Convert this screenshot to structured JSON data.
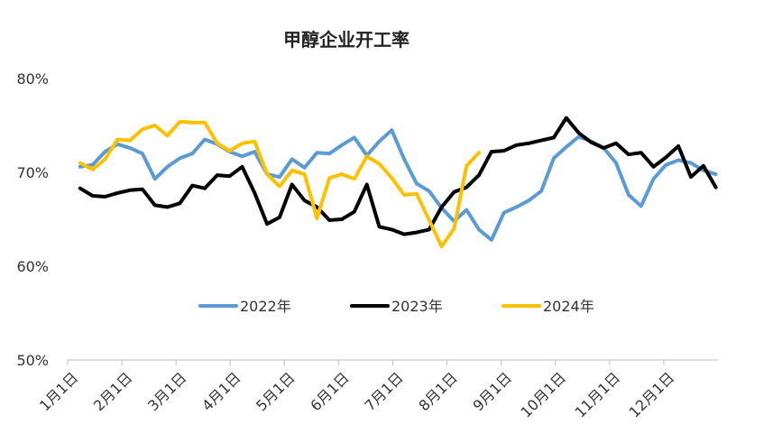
{
  "chart_data": {
    "type": "line",
    "title": "甲醇企业开工率",
    "xlabel": "",
    "ylabel": "",
    "ylim": [
      50,
      80
    ],
    "yticks": [
      "50%",
      "60%",
      "70%",
      "80%"
    ],
    "yticks_values": [
      50,
      60,
      70,
      80
    ],
    "xlim": [
      0,
      12
    ],
    "xticks": [
      "1月1日",
      "2月1日",
      "3月1日",
      "4月1日",
      "5月1日",
      "6月1日",
      "7月1日",
      "8月1日",
      "9月1日",
      "10月1日",
      "11月1日",
      "12月1日"
    ],
    "xticks_values": [
      0,
      1,
      2,
      3,
      4,
      5,
      6,
      7,
      8,
      9,
      10,
      11
    ],
    "x_units": "month index from 1月1日",
    "grid": false,
    "legend_position": "bottom-center",
    "series": [
      {
        "name": "2022年",
        "color": "#5B9BD5",
        "x": [
          0.23,
          0.46,
          0.69,
          0.92,
          1.15,
          1.38,
          1.61,
          1.84,
          2.07,
          2.3,
          2.53,
          2.76,
          2.99,
          3.22,
          3.45,
          3.68,
          3.91,
          4.14,
          4.37,
          4.6,
          4.83,
          5.06,
          5.29,
          5.52,
          5.75,
          5.98,
          6.21,
          6.44,
          6.67,
          6.9,
          7.13,
          7.36,
          7.59,
          7.82,
          8.05,
          8.28,
          8.51,
          8.74,
          8.97,
          9.2,
          9.43,
          9.66,
          9.89,
          10.12,
          10.35,
          10.58,
          10.81,
          11.04,
          11.27,
          11.5,
          11.73,
          11.96
        ],
        "values": [
          70.6,
          70.8,
          72.2,
          73.0,
          72.6,
          72.0,
          69.3,
          70.6,
          71.5,
          72.0,
          73.5,
          73.0,
          72.2,
          71.7,
          72.2,
          69.8,
          69.5,
          71.4,
          70.5,
          72.1,
          72.0,
          72.9,
          73.7,
          71.8,
          73.3,
          74.5,
          71.4,
          68.8,
          68.0,
          66.2,
          64.8,
          66.0,
          63.9,
          62.8,
          65.7,
          66.3,
          67.0,
          68.0,
          71.5,
          72.7,
          73.8,
          73.3,
          72.6,
          71.0,
          67.6,
          66.4,
          69.3,
          70.8,
          71.3,
          71.0,
          70.2,
          69.8
        ]
      },
      {
        "name": "2023年",
        "color": "#000000",
        "x": [
          0.23,
          0.46,
          0.69,
          0.92,
          1.15,
          1.38,
          1.61,
          1.84,
          2.07,
          2.3,
          2.53,
          2.76,
          2.99,
          3.22,
          3.45,
          3.68,
          3.91,
          4.14,
          4.37,
          4.6,
          4.83,
          5.06,
          5.29,
          5.52,
          5.75,
          5.98,
          6.21,
          6.44,
          6.67,
          6.9,
          7.13,
          7.36,
          7.59,
          7.82,
          8.05,
          8.28,
          8.51,
          8.74,
          8.97,
          9.2,
          9.43,
          9.66,
          9.89,
          10.12,
          10.35,
          10.58,
          10.81,
          11.04,
          11.27,
          11.5,
          11.73,
          11.96
        ],
        "values": [
          68.3,
          67.5,
          67.4,
          67.8,
          68.1,
          68.2,
          66.5,
          66.3,
          66.7,
          68.6,
          68.3,
          69.7,
          69.6,
          70.6,
          67.8,
          64.5,
          65.2,
          68.7,
          67.0,
          66.3,
          64.9,
          65.0,
          65.8,
          68.7,
          64.2,
          63.9,
          63.4,
          63.6,
          63.9,
          66.3,
          67.9,
          68.4,
          69.7,
          72.2,
          72.3,
          72.9,
          73.1,
          73.4,
          73.7,
          75.8,
          74.2,
          73.2,
          72.6,
          73.1,
          71.9,
          72.1,
          70.6,
          71.6,
          72.8,
          69.5,
          70.7,
          68.4
        ]
      },
      {
        "name": "2024年",
        "color": "#FFC000",
        "x": [
          0.23,
          0.46,
          0.69,
          0.92,
          1.15,
          1.38,
          1.61,
          1.84,
          2.07,
          2.3,
          2.53,
          2.76,
          2.99,
          3.22,
          3.45,
          3.68,
          3.91,
          4.14,
          4.37,
          4.6,
          4.83,
          5.06,
          5.29,
          5.52,
          5.75,
          5.98,
          6.21,
          6.44,
          6.67,
          6.9,
          7.13,
          7.36,
          7.59
        ],
        "values": [
          71.0,
          70.3,
          71.4,
          73.5,
          73.4,
          74.6,
          75.0,
          73.9,
          75.4,
          75.3,
          75.3,
          73.1,
          72.3,
          73.1,
          73.3,
          69.8,
          68.5,
          70.2,
          69.8,
          65.1,
          69.4,
          69.8,
          69.3,
          71.7,
          70.9,
          69.4,
          67.6,
          67.7,
          64.9,
          62.1,
          64.0,
          70.7,
          72.1
        ]
      }
    ]
  }
}
